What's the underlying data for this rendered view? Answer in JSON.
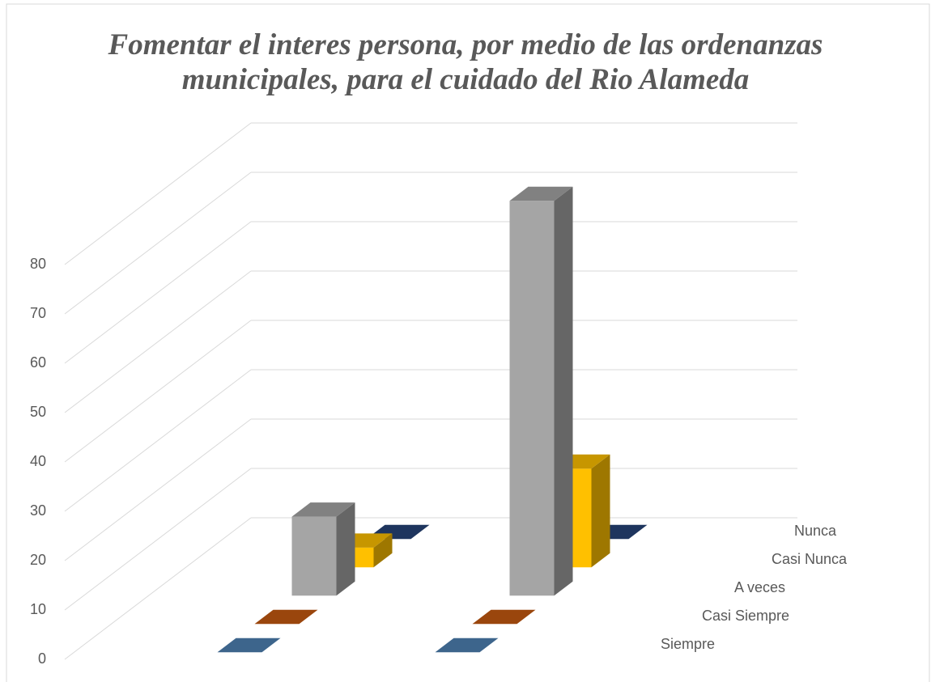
{
  "chart_data": {
    "type": "bar3d",
    "title": "Fomentar el interes persona, por medio de las ordenanzas municipales, para el cuidado del Rio Alameda",
    "categories": [
      null,
      null
    ],
    "series": [
      {
        "name": "Siempre",
        "color": "#4e81b4",
        "values": [
          0,
          0
        ]
      },
      {
        "name": "Casi Siempre",
        "color": "#c55a11",
        "values": [
          0,
          0
        ]
      },
      {
        "name": "A veces",
        "color": "#a5a5a5",
        "values": [
          16,
          80
        ]
      },
      {
        "name": "Casi Nunca",
        "color": "#ffc000",
        "values": [
          4,
          20
        ]
      },
      {
        "name": "Nunca",
        "color": "#264478",
        "values": [
          0,
          0
        ]
      }
    ],
    "ylim": [
      0,
      80
    ],
    "yticks": [
      0,
      10,
      20,
      30,
      40,
      50,
      60,
      70,
      80
    ],
    "grid": true
  }
}
